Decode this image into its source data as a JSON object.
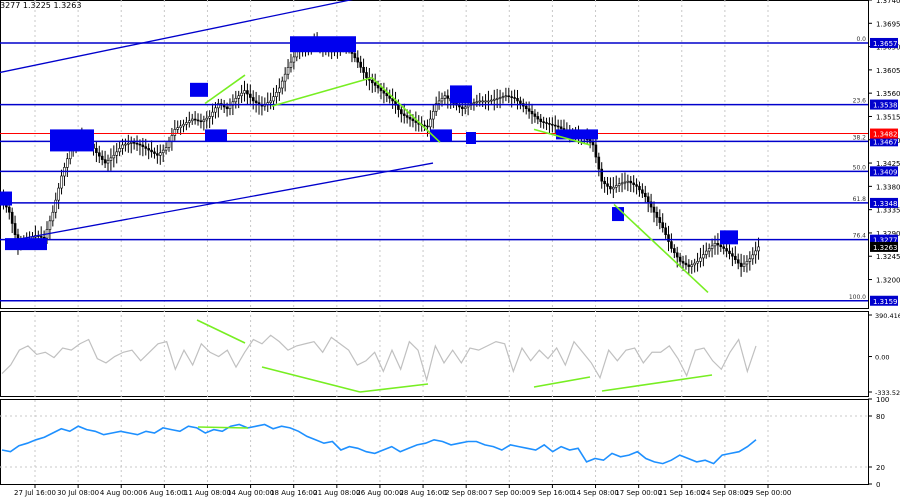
{
  "header": {
    "ohlc_text": "3277 1.3225 1.3263"
  },
  "colors": {
    "candle": "#000000",
    "hline": "#0000cc",
    "channel": "#0000cc",
    "box_fill": "#0000ee",
    "divergence": "#77ee22",
    "indicator1": "#c0c0c0",
    "indicator2": "#1e90ff",
    "red_line": "#ff0000",
    "label_bg": "#0000cc",
    "label_text": "#ffffff",
    "current_label_bg": "#000000",
    "grid": "#c8c8c8"
  },
  "chart_data": [
    {
      "type": "candlestick",
      "title": "",
      "ylim": [
        1.3145,
        1.374
      ],
      "y_ticks": [
        "1.3740",
        "1.3695",
        "1.3650",
        "1.3605",
        "1.3560",
        "1.3515",
        "1.3470",
        "1.3425",
        "1.3380",
        "1.3335",
        "1.3290",
        "1.3245",
        "1.3200"
      ],
      "x_ticks": [
        "27 Jul 16:00",
        "30 Jul 08:00",
        "4 Aug 00:00",
        "6 Aug 16:00",
        "11 Aug 08:00",
        "14 Aug 00:00",
        "18 Aug 16:00",
        "21 Aug 08:00",
        "26 Aug 00:00",
        "28 Aug 16:00",
        "2 Sep 08:00",
        "7 Sep 00:00",
        "9 Sep 16:00",
        "14 Sep 08:00",
        "17 Sep 00:00",
        "21 Sep 16:00",
        "24 Sep 08:00",
        "29 Sep 00:00"
      ],
      "price_path": [
        1.336,
        1.333,
        1.3265,
        1.3275,
        1.3285,
        1.328,
        1.333,
        1.34,
        1.345,
        1.348,
        1.347,
        1.3445,
        1.3425,
        1.344,
        1.346,
        1.3465,
        1.346,
        1.345,
        1.344,
        1.3455,
        1.349,
        1.35,
        1.351,
        1.3505,
        1.3515,
        1.354,
        1.353,
        1.355,
        1.3565,
        1.3545,
        1.3535,
        1.3545,
        1.357,
        1.361,
        1.364,
        1.365,
        1.366,
        1.3645,
        1.364,
        1.365,
        1.3645,
        1.362,
        1.359,
        1.3575,
        1.356,
        1.3545,
        1.352,
        1.351,
        1.35,
        1.3495,
        1.354,
        1.3555,
        1.354,
        1.353,
        1.354,
        1.3545,
        1.3545,
        1.355,
        1.3555,
        1.355,
        1.3535,
        1.352,
        1.3505,
        1.35,
        1.3495,
        1.3485,
        1.348,
        1.3475,
        1.346,
        1.339,
        1.3375,
        1.3385,
        1.339,
        1.338,
        1.336,
        1.333,
        1.33,
        1.326,
        1.3235,
        1.3225,
        1.3235,
        1.3255,
        1.327,
        1.326,
        1.3245,
        1.3225,
        1.324,
        1.3263
      ],
      "fib_levels": [
        {
          "label": "0.0",
          "value": 1.3657,
          "price": "1.3657"
        },
        {
          "label": "23.6",
          "value": 1.3538,
          "price": "1.3538"
        },
        {
          "label": "38.2",
          "value": 1.3467,
          "price": "1.3467"
        },
        {
          "label": "50.0",
          "value": 1.3409,
          "price": "1.3409"
        },
        {
          "label": "61.8",
          "value": 1.3348,
          "price": "1.3348"
        },
        {
          "label": "76.4",
          "value": 1.3277,
          "price": "1.3277"
        },
        {
          "label": "100.0",
          "value": 1.3159,
          "price": "1.3159"
        }
      ],
      "red_level": {
        "value": 1.3482,
        "price": "1.3482"
      },
      "current_price": {
        "value": 1.3263,
        "price": "1.3263"
      }
    },
    {
      "type": "line",
      "title": "",
      "ylim": [
        -333.522,
        390.4163
      ],
      "y_ticks": [
        "390.4163",
        "0.00",
        "-333.522"
      ],
      "series": [
        {
          "values": [
            -160,
            -80,
            60,
            100,
            20,
            40,
            -10,
            80,
            60,
            120,
            160,
            -20,
            -60,
            0,
            40,
            60,
            -40,
            40,
            120,
            140,
            -120,
            60,
            -80,
            120,
            40,
            0,
            60,
            -100,
            40,
            160,
            120,
            200,
            140,
            60,
            100,
            120,
            140,
            40,
            180,
            120,
            60,
            -80,
            -40,
            40,
            -140,
            60,
            -120,
            140,
            60,
            -220,
            100,
            -60,
            60,
            -60,
            80,
            60,
            100,
            140,
            120,
            -140,
            80,
            -40,
            60,
            -20,
            80,
            -80,
            140,
            40,
            -60,
            -200,
            60,
            -40,
            60,
            80,
            -60,
            40,
            40,
            100,
            -20,
            -180,
            60,
            80,
            -40,
            -120,
            40,
            160,
            -140,
            100
          ]
        }
      ]
    },
    {
      "type": "line",
      "title": "",
      "ylim": [
        0,
        100
      ],
      "y_ticks": [
        "100",
        "80",
        "20",
        "0"
      ],
      "series": [
        {
          "values": [
            40,
            38,
            45,
            48,
            52,
            55,
            60,
            65,
            62,
            68,
            64,
            62,
            58,
            60,
            62,
            60,
            58,
            62,
            60,
            66,
            64,
            62,
            68,
            66,
            60,
            64,
            62,
            68,
            70,
            66,
            68,
            70,
            65,
            68,
            66,
            62,
            56,
            52,
            48,
            50,
            40,
            44,
            42,
            38,
            36,
            40,
            44,
            38,
            42,
            46,
            48,
            52,
            50,
            46,
            48,
            50,
            50,
            46,
            44,
            40,
            46,
            44,
            42,
            40,
            46,
            38,
            44,
            40,
            42,
            26,
            30,
            28,
            36,
            32,
            34,
            38,
            30,
            26,
            24,
            28,
            34,
            30,
            26,
            28,
            24,
            34,
            36,
            38,
            44,
            52
          ]
        }
      ]
    }
  ]
}
